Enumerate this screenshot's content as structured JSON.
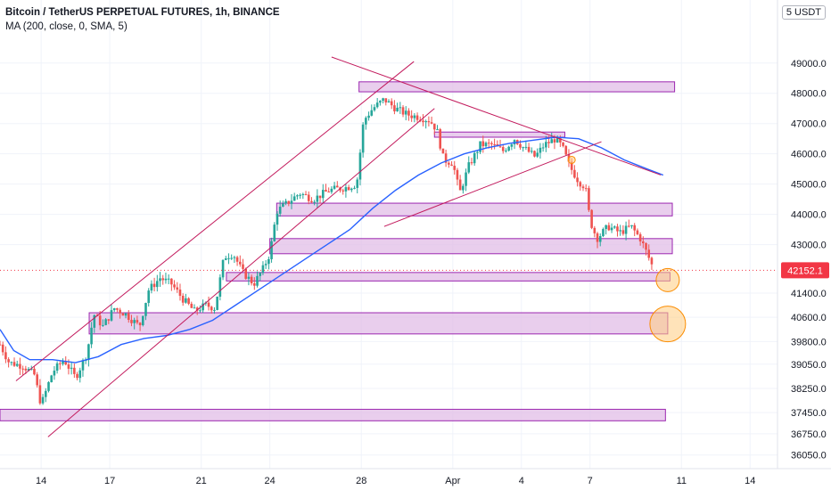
{
  "chart_data": {
    "type": "candlestick",
    "title": "Bitcoin / TetherUS PERPETUAL FUTURES, 1h, BINANCE",
    "indicator_label": "MA (200, close, 0, SMA, 5)",
    "currency": "USDT",
    "currency_badge": "5 USDT",
    "last_price": 42152.1,
    "last_price_label": "42152.1",
    "x_ticks": [
      "14",
      "17",
      "21",
      "24",
      "28",
      "Apr",
      "4",
      "7",
      "11",
      "14"
    ],
    "x_tick_days": [
      14,
      17,
      21,
      24,
      28,
      32,
      35,
      38,
      42,
      45
    ],
    "xlim_days": [
      12.2,
      46.2
    ],
    "y_ticks": [
      36050,
      36750,
      37450,
      38250,
      39050,
      39800,
      40600,
      41400,
      42152.1,
      43000,
      44000,
      45000,
      46000,
      47000,
      48000,
      49000
    ],
    "y_tick_labels": [
      "36050.0",
      "36750.0",
      "37450.0",
      "38250.0",
      "39050.0",
      "39800.0",
      "40600.0",
      "41400.0",
      "",
      "43000.0",
      "44000.0",
      "45000.0",
      "46000.0",
      "47000.0",
      "48000.0",
      "49000.0"
    ],
    "ylim": [
      35600,
      50200
    ],
    "grid": true,
    "price_path": [
      {
        "day": 12.2,
        "price": 39700
      },
      {
        "day": 12.6,
        "price": 39100
      },
      {
        "day": 13.2,
        "price": 39000
      },
      {
        "day": 13.7,
        "price": 38700
      },
      {
        "day": 14.0,
        "price": 37700
      },
      {
        "day": 14.5,
        "price": 38800
      },
      {
        "day": 15.0,
        "price": 39200
      },
      {
        "day": 15.5,
        "price": 38600
      },
      {
        "day": 16.0,
        "price": 39400
      },
      {
        "day": 16.3,
        "price": 40700
      },
      {
        "day": 16.7,
        "price": 40300
      },
      {
        "day": 17.2,
        "price": 40900
      },
      {
        "day": 17.7,
        "price": 40700
      },
      {
        "day": 18.3,
        "price": 40300
      },
      {
        "day": 18.7,
        "price": 41500
      },
      {
        "day": 19.2,
        "price": 41900
      },
      {
        "day": 19.7,
        "price": 41700
      },
      {
        "day": 20.2,
        "price": 41200
      },
      {
        "day": 20.7,
        "price": 40800
      },
      {
        "day": 21.2,
        "price": 41000
      },
      {
        "day": 21.6,
        "price": 40900
      },
      {
        "day": 22.0,
        "price": 42600
      },
      {
        "day": 22.4,
        "price": 42700
      },
      {
        "day": 22.8,
        "price": 42100
      },
      {
        "day": 23.3,
        "price": 41700
      },
      {
        "day": 23.7,
        "price": 42200
      },
      {
        "day": 24.0,
        "price": 42700
      },
      {
        "day": 24.3,
        "price": 44100
      },
      {
        "day": 24.8,
        "price": 44400
      },
      {
        "day": 25.3,
        "price": 44700
      },
      {
        "day": 25.9,
        "price": 44500
      },
      {
        "day": 26.6,
        "price": 44800
      },
      {
        "day": 27.4,
        "price": 44900
      },
      {
        "day": 27.8,
        "price": 45000
      },
      {
        "day": 28.1,
        "price": 47100
      },
      {
        "day": 28.5,
        "price": 47500
      },
      {
        "day": 29.0,
        "price": 47800
      },
      {
        "day": 29.5,
        "price": 47500
      },
      {
        "day": 30.0,
        "price": 47300
      },
      {
        "day": 30.6,
        "price": 47200
      },
      {
        "day": 31.0,
        "price": 47100
      },
      {
        "day": 31.3,
        "price": 46800
      },
      {
        "day": 31.6,
        "price": 45800
      },
      {
        "day": 32.0,
        "price": 45700
      },
      {
        "day": 32.3,
        "price": 44700
      },
      {
        "day": 32.7,
        "price": 45600
      },
      {
        "day": 33.2,
        "price": 46300
      },
      {
        "day": 33.7,
        "price": 46300
      },
      {
        "day": 34.2,
        "price": 46100
      },
      {
        "day": 34.7,
        "price": 46500
      },
      {
        "day": 35.1,
        "price": 46200
      },
      {
        "day": 35.6,
        "price": 45900
      },
      {
        "day": 36.0,
        "price": 46300
      },
      {
        "day": 36.5,
        "price": 46500
      },
      {
        "day": 36.8,
        "price": 46200
      },
      {
        "day": 37.1,
        "price": 45600
      },
      {
        "day": 37.5,
        "price": 45100
      },
      {
        "day": 37.8,
        "price": 44900
      },
      {
        "day": 38.0,
        "price": 43800
      },
      {
        "day": 38.3,
        "price": 43200
      },
      {
        "day": 38.8,
        "price": 43600
      },
      {
        "day": 39.3,
        "price": 43400
      },
      {
        "day": 39.8,
        "price": 43600
      },
      {
        "day": 40.2,
        "price": 43200
      },
      {
        "day": 40.5,
        "price": 42700
      },
      {
        "day": 40.8,
        "price": 42150
      }
    ],
    "ma200": [
      {
        "day": 12.2,
        "price": 40200
      },
      {
        "day": 12.8,
        "price": 39500
      },
      {
        "day": 13.5,
        "price": 39200
      },
      {
        "day": 14.5,
        "price": 39200
      },
      {
        "day": 15.5,
        "price": 39100
      },
      {
        "day": 16.5,
        "price": 39300
      },
      {
        "day": 17.5,
        "price": 39700
      },
      {
        "day": 18.5,
        "price": 39900
      },
      {
        "day": 19.5,
        "price": 40000
      },
      {
        "day": 20.5,
        "price": 40200
      },
      {
        "day": 21.5,
        "price": 40500
      },
      {
        "day": 22.5,
        "price": 41000
      },
      {
        "day": 23.5,
        "price": 41500
      },
      {
        "day": 24.5,
        "price": 42000
      },
      {
        "day": 25.5,
        "price": 42500
      },
      {
        "day": 26.5,
        "price": 43000
      },
      {
        "day": 27.5,
        "price": 43500
      },
      {
        "day": 28.5,
        "price": 44200
      },
      {
        "day": 29.5,
        "price": 44800
      },
      {
        "day": 30.5,
        "price": 45300
      },
      {
        "day": 31.5,
        "price": 45700
      },
      {
        "day": 32.5,
        "price": 46000
      },
      {
        "day": 33.5,
        "price": 46200
      },
      {
        "day": 34.5,
        "price": 46350
      },
      {
        "day": 35.5,
        "price": 46450
      },
      {
        "day": 36.5,
        "price": 46550
      },
      {
        "day": 37.5,
        "price": 46500
      },
      {
        "day": 38.5,
        "price": 46200
      },
      {
        "day": 39.5,
        "price": 45800
      },
      {
        "day": 40.5,
        "price": 45500
      },
      {
        "day": 41.2,
        "price": 45300
      }
    ],
    "zones": [
      {
        "x0": 27.9,
        "x1": 41.7,
        "y0": 48050,
        "y1": 48380
      },
      {
        "x0": 31.2,
        "x1": 36.9,
        "y0": 46550,
        "y1": 46720
      },
      {
        "x0": 24.3,
        "x1": 41.6,
        "y0": 43950,
        "y1": 44370
      },
      {
        "x0": 24.0,
        "x1": 41.6,
        "y0": 42700,
        "y1": 43200
      },
      {
        "x0": 22.1,
        "x1": 41.5,
        "y0": 41800,
        "y1": 42080
      },
      {
        "x0": 16.1,
        "x1": 41.4,
        "y0": 40050,
        "y1": 40750
      },
      {
        "x0": 12.2,
        "x1": 41.3,
        "y0": 37180,
        "y1": 37560
      }
    ],
    "trendlines": [
      {
        "name": "channel-upper",
        "x0": 12.9,
        "y0": 38500,
        "x1": 30.3,
        "y1": 49050
      },
      {
        "name": "channel-lower",
        "x0": 14.3,
        "y0": 36650,
        "x1": 31.2,
        "y1": 47500
      },
      {
        "name": "upper-resistance",
        "x0": 26.7,
        "y0": 49200,
        "x1": 41.1,
        "y1": 45300
      },
      {
        "name": "rising-support",
        "x0": 29.0,
        "y0": 43600,
        "x1": 38.5,
        "y1": 46400
      }
    ],
    "targets": [
      {
        "day": 41.4,
        "price": 41830,
        "size": "small"
      },
      {
        "day": 41.4,
        "price": 40380,
        "size": "large"
      },
      {
        "day": 37.2,
        "price": 45800,
        "size": "tiny"
      }
    ],
    "colors": {
      "up": "#26a69a",
      "down": "#ef5350",
      "ma": "#2962ff",
      "trendline": "#c2185b",
      "zone_fill": "#e1bee7",
      "zone_stroke": "#9c27b0",
      "target_fill": "#ffcc80",
      "target_stroke": "#fb8c00",
      "price_badge": "#f23645",
      "grid": "#f0f3fa"
    }
  }
}
